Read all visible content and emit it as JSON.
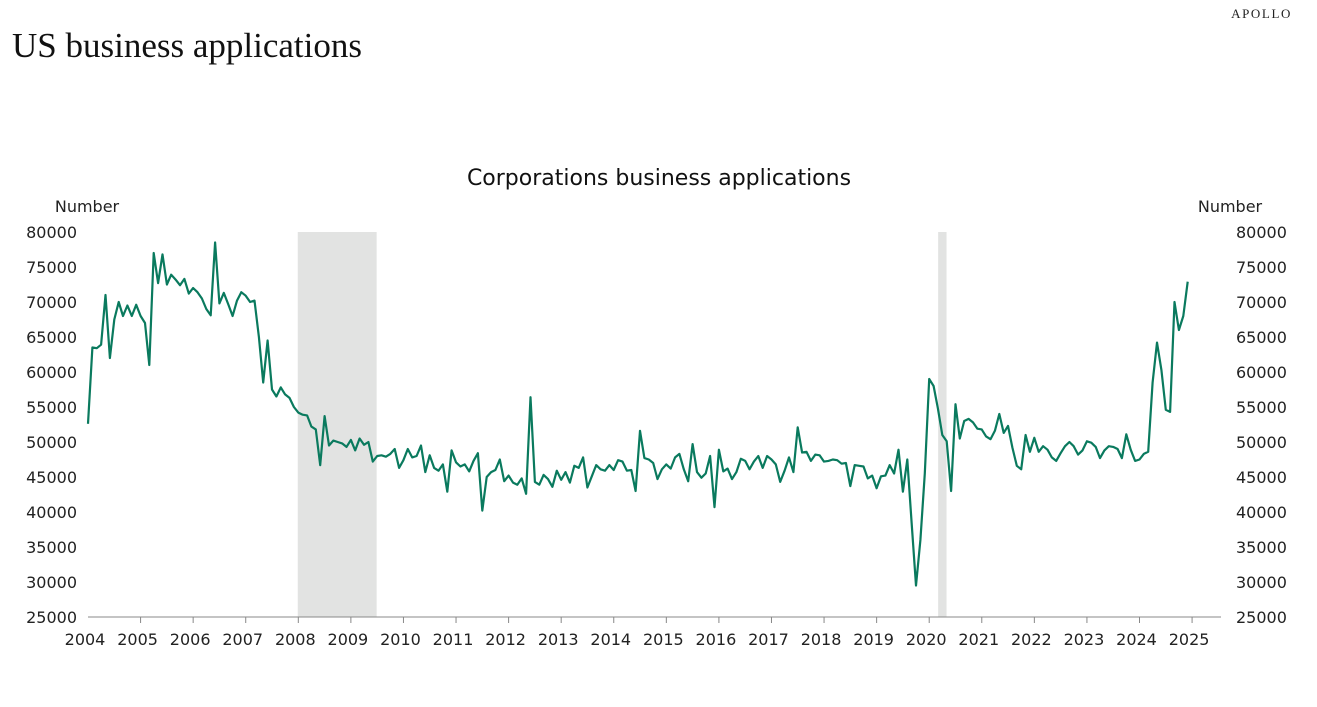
{
  "header": {
    "brand": "APOLLO",
    "title": "US business applications"
  },
  "chart_data": {
    "type": "line",
    "title": "Corporations business applications",
    "ylabel_left": "Number",
    "ylabel_right": "Number",
    "ylim": [
      25000,
      80000
    ],
    "yticks": [
      25000,
      30000,
      35000,
      40000,
      45000,
      50000,
      55000,
      60000,
      65000,
      70000,
      75000,
      80000
    ],
    "xlim": [
      2004.0,
      2025.55
    ],
    "xtick_labels": [
      "2004",
      "2005",
      "2006",
      "2007",
      "2008",
      "2009",
      "2010",
      "2011",
      "2012",
      "2013",
      "2014",
      "2015",
      "2016",
      "2017",
      "2018",
      "2019",
      "2020",
      "2021",
      "2022",
      "2023",
      "2024",
      "2025"
    ],
    "recessions": [
      [
        2007.99,
        2009.49
      ],
      [
        2020.17,
        2020.33
      ]
    ],
    "line_color": "#0a7a5e",
    "recession_color": "#e2e3e2",
    "series": [
      {
        "x_start": 2004.0,
        "step": 0.08333,
        "values": [
          52600,
          63500,
          63400,
          63900,
          71000,
          62000,
          67500,
          70000,
          68000,
          69500,
          68000,
          69600,
          68000,
          67000,
          61000,
          77000,
          72700,
          76800,
          72500,
          73900,
          73200,
          72400,
          73300,
          71200,
          72000,
          71400,
          70500,
          69000,
          68100,
          78500,
          69800,
          71300,
          69700,
          68000,
          70200,
          71400,
          70900,
          70000,
          70200,
          65000,
          58500,
          64500,
          57500,
          56500,
          57800,
          56800,
          56300,
          55000,
          54200,
          53900,
          53800,
          52200,
          51800,
          46700,
          53700,
          49500,
          50200,
          50000,
          49800,
          49300,
          50300,
          48800,
          50500,
          49600,
          50000,
          47200,
          48000,
          48100,
          47900,
          48300,
          49000,
          46300,
          47400,
          49000,
          47800,
          48000,
          49500,
          45700,
          48100,
          46300,
          45900,
          46800,
          42900,
          48800,
          47100,
          46500,
          46800,
          45800,
          47300,
          48400,
          40200,
          45000,
          45700,
          46000,
          47500,
          44400,
          45200,
          44200,
          43900,
          44800,
          42600,
          56400,
          44300,
          43900,
          45300,
          44700,
          43600,
          45900,
          44600,
          45700,
          44200,
          46600,
          46300,
          47800,
          43500,
          45100,
          46700,
          46100,
          45900,
          46700,
          46000,
          47400,
          47200,
          45900,
          46000,
          43000,
          51600,
          47700,
          47500,
          47000,
          44700,
          46100,
          46800,
          46200,
          47800,
          48300,
          46100,
          44400,
          49700,
          45700,
          44900,
          45500,
          48000,
          40700,
          48900,
          45800,
          46200,
          44700,
          45700,
          47600,
          47300,
          46100,
          47200,
          48000,
          46300,
          48000,
          47500,
          46800,
          44300,
          45900,
          47800,
          45700,
          52100,
          48500,
          48600,
          47300,
          48200,
          48100,
          47200,
          47300,
          47500,
          47400,
          46900,
          47000,
          43700,
          46700,
          46600,
          46500,
          44800,
          45200,
          43400,
          45100,
          45200,
          46700,
          45500,
          48900,
          42900,
          47500,
          38500,
          29500,
          36000,
          45500,
          59000,
          58000,
          54800,
          51000,
          50100,
          43000,
          55400,
          50500,
          53000,
          53300,
          52800,
          51900,
          51800,
          50800,
          50400,
          51600,
          54000,
          51300,
          52300,
          49200,
          46600,
          46100,
          51000,
          48600,
          50600,
          48600,
          49400,
          48900,
          47800,
          47300,
          48400,
          49400,
          50000,
          49400,
          48200,
          48800,
          50100,
          49900,
          49300,
          47700,
          48800,
          49400,
          49300,
          49000,
          47700,
          51100,
          48900,
          47300,
          47500,
          48300,
          48600,
          58500,
          64200,
          60300,
          54600,
          54300,
          70000,
          66000,
          68000,
          72900
        ]
      }
    ]
  }
}
